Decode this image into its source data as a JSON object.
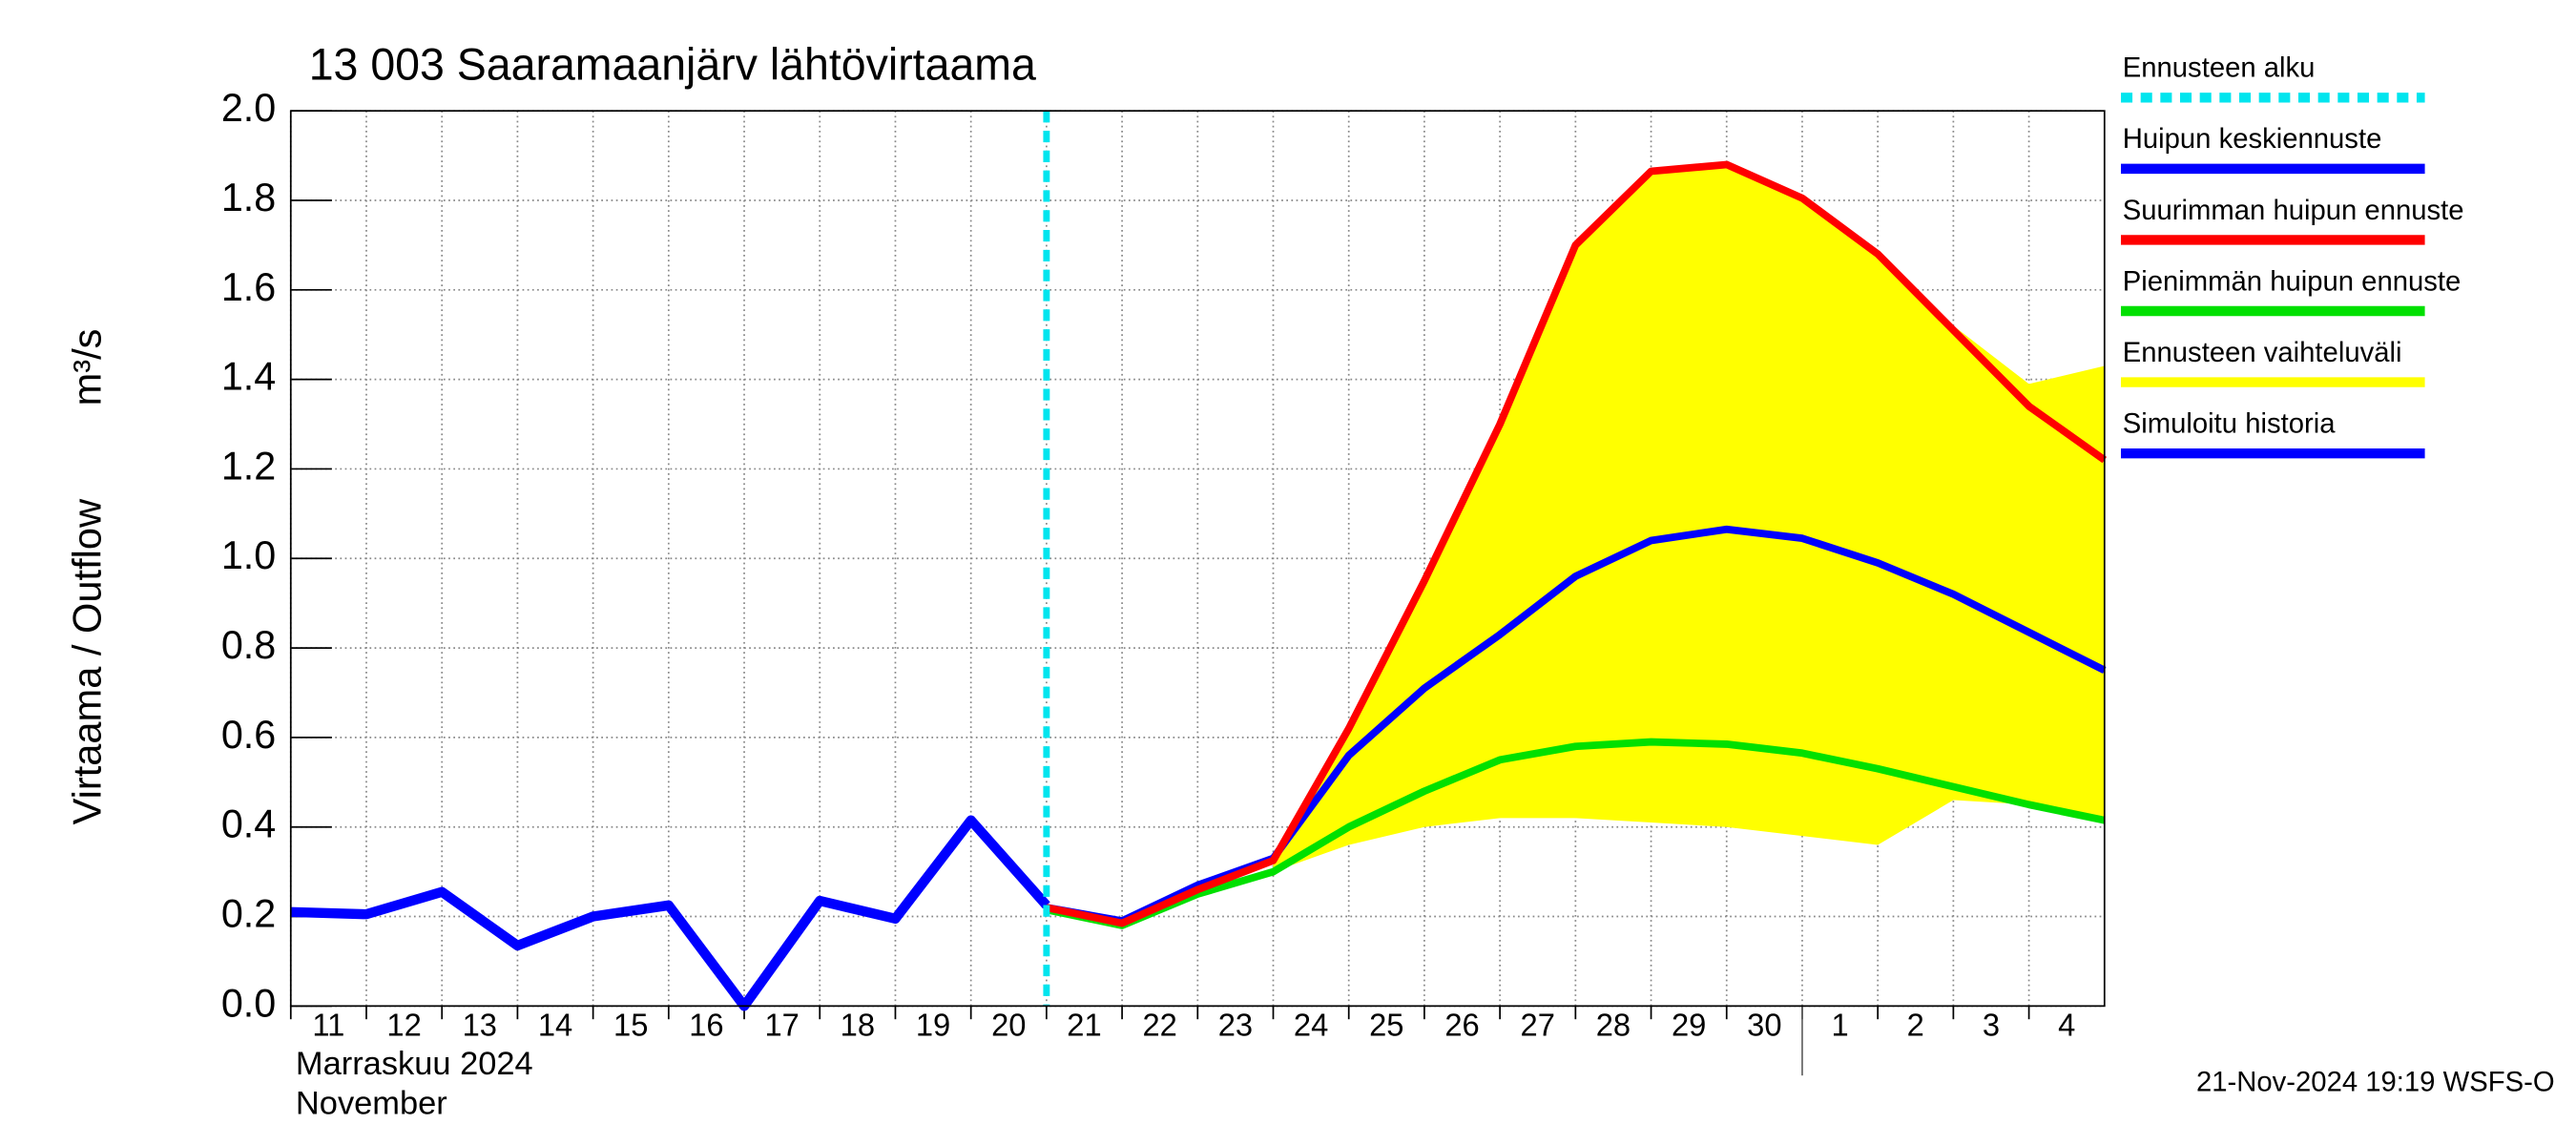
{
  "chart_data": {
    "type": "line",
    "title": "13 003 Saaramaanjärv lähtövirtaama",
    "y_label": "Virtaama / Outflow",
    "y_unit": "m³/s",
    "month_label_fi": "Marraskuu 2024",
    "month_label_en": "November",
    "timestamp": "21-Nov-2024 19:19 WSFS-O",
    "xlim": [
      0,
      24
    ],
    "xticks": [
      {
        "value": 0,
        "label": "11"
      },
      {
        "value": 1,
        "label": "12"
      },
      {
        "value": 2,
        "label": "13"
      },
      {
        "value": 3,
        "label": "14"
      },
      {
        "value": 4,
        "label": "15"
      },
      {
        "value": 5,
        "label": "16"
      },
      {
        "value": 6,
        "label": "17"
      },
      {
        "value": 7,
        "label": "18"
      },
      {
        "value": 8,
        "label": "19"
      },
      {
        "value": 9,
        "label": "20"
      },
      {
        "value": 10,
        "label": "21"
      },
      {
        "value": 11,
        "label": "22"
      },
      {
        "value": 12,
        "label": "23"
      },
      {
        "value": 13,
        "label": "24"
      },
      {
        "value": 14,
        "label": "25"
      },
      {
        "value": 15,
        "label": "26"
      },
      {
        "value": 16,
        "label": "27"
      },
      {
        "value": 17,
        "label": "28"
      },
      {
        "value": 18,
        "label": "29"
      },
      {
        "value": 19,
        "label": "30"
      },
      {
        "value": 20,
        "label": "1"
      },
      {
        "value": 21,
        "label": "2"
      },
      {
        "value": 22,
        "label": "3"
      },
      {
        "value": 23,
        "label": "4"
      }
    ],
    "month_boundary": 20,
    "ylim": [
      0,
      2
    ],
    "yticks": [
      {
        "value": 0,
        "label": "0.0"
      },
      0.2,
      0.4,
      0.6,
      0.8,
      {
        "value": 1,
        "label": "1.0"
      },
      1.2,
      1.4,
      1.6,
      1.8,
      {
        "value": 2,
        "label": "2.0"
      }
    ],
    "grid": true,
    "forecast_start": {
      "name": "Ennusteen alku",
      "color": "#00e5ee",
      "x": 10
    },
    "series": [
      {
        "name": "Huipun keskiennuste",
        "color": "#0000ff",
        "kind": "line",
        "x": [
          10,
          11,
          12,
          13,
          14,
          15,
          16,
          17,
          18,
          19,
          20,
          21,
          22,
          23,
          24
        ],
        "values": [
          0.22,
          0.19,
          0.27,
          0.33,
          0.56,
          0.71,
          0.83,
          0.96,
          1.04,
          1.065,
          1.045,
          0.99,
          0.92,
          0.835,
          0.75
        ]
      },
      {
        "name": "Suurimman huipun ennuste",
        "color": "#ff0000",
        "kind": "line",
        "x": [
          10,
          11,
          12,
          13,
          14,
          15,
          16,
          17,
          18,
          19,
          20,
          21,
          22,
          23,
          24
        ],
        "values": [
          0.22,
          0.185,
          0.26,
          0.325,
          0.62,
          0.95,
          1.3,
          1.7,
          1.865,
          1.88,
          1.805,
          1.68,
          1.51,
          1.34,
          1.22
        ]
      },
      {
        "name": "Pienimmän huipun ennuste",
        "color": "#00e000",
        "kind": "line",
        "x": [
          10,
          11,
          12,
          13,
          14,
          15,
          16,
          17,
          18,
          19,
          20,
          21,
          22,
          23,
          24
        ],
        "values": [
          0.215,
          0.18,
          0.25,
          0.3,
          0.4,
          0.48,
          0.55,
          0.58,
          0.59,
          0.585,
          0.565,
          0.53,
          0.49,
          0.45,
          0.415
        ]
      },
      {
        "name": "Ennusteen vaihteluväli",
        "color": "#ffff00",
        "kind": "band",
        "x": [
          13,
          14,
          15,
          16,
          17,
          18,
          19,
          20,
          21,
          22,
          23,
          24
        ],
        "values": [
          0.33,
          0.62,
          0.95,
          1.3,
          1.7,
          1.865,
          1.88,
          1.805,
          1.68,
          1.52,
          1.39,
          1.43
        ],
        "lower": [
          0.3,
          0.36,
          0.4,
          0.42,
          0.42,
          0.41,
          0.4,
          0.38,
          0.36,
          0.46,
          0.45,
          0.415
        ]
      },
      {
        "name": "Simuloitu historia",
        "color": "#0000ff",
        "kind": "line",
        "x": [
          0,
          1,
          2,
          3,
          4,
          5,
          6,
          7,
          8,
          9,
          10
        ],
        "values": [
          0.21,
          0.205,
          0.255,
          0.135,
          0.2,
          0.225,
          0.0,
          0.235,
          0.195,
          0.415,
          0.225
        ]
      }
    ]
  }
}
